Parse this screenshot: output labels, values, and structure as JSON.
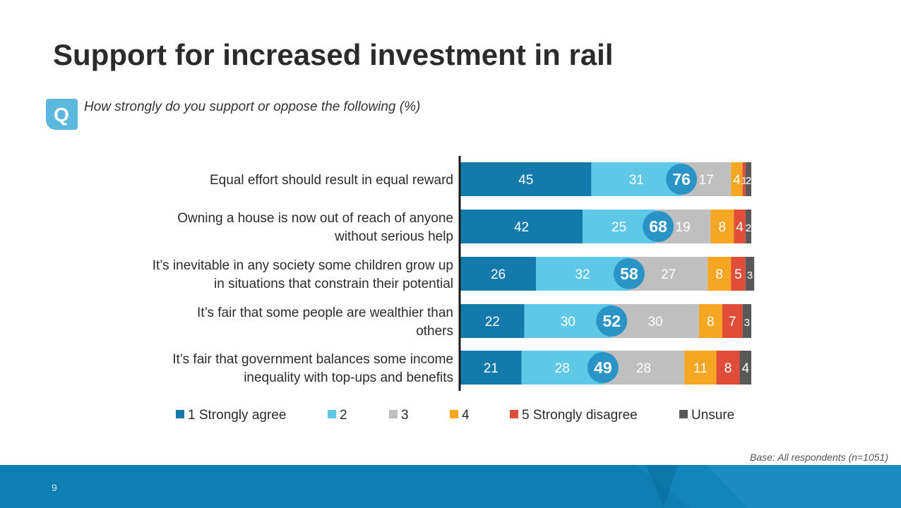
{
  "slide": {
    "title": "Support for increased investment in rail",
    "question": "How strongly do you support or oppose the following (%)",
    "base_note": "Base: All respondents (n=1051)",
    "page_number": "9",
    "question_icon_letter": "Q",
    "colors": {
      "title": "#2b2b2b",
      "footer": "#0e7eb3",
      "badge": "#5bb8de"
    }
  },
  "chart_data": {
    "type": "bar",
    "orientation": "horizontal",
    "stacked": true,
    "categories": [
      [
        "Equal effort should result in equal reward"
      ],
      [
        "Owning a house is now out of reach of anyone",
        "without serious help"
      ],
      [
        "It’s inevitable in any society some children grow up",
        "in situations that constrain their potential"
      ],
      [
        "It’s fair that some people are wealthier than",
        "others"
      ],
      [
        "It’s fair that government balances some income",
        "inequality with top-ups and benefits"
      ]
    ],
    "series": [
      {
        "name": "1 Strongly agree",
        "color": "#1479ab",
        "values": [
          45,
          42,
          26,
          22,
          21
        ]
      },
      {
        "name": "2",
        "color": "#5ec8e6",
        "values": [
          31,
          25,
          32,
          30,
          28
        ]
      },
      {
        "name": "3",
        "color": "#bfbfbf",
        "values": [
          17,
          19,
          27,
          30,
          28
        ]
      },
      {
        "name": "4",
        "color": "#f5a623",
        "values": [
          4,
          8,
          8,
          8,
          11
        ]
      },
      {
        "name": "5 Strongly disagree",
        "color": "#e04e39",
        "values": [
          1,
          4,
          5,
          7,
          8
        ]
      },
      {
        "name": "Unsure",
        "color": "#595959",
        "values": [
          2,
          2,
          3,
          3,
          4
        ]
      }
    ],
    "data_labels": [
      [
        "45",
        "31",
        "17",
        "4",
        "1",
        "2"
      ],
      [
        "42",
        "25",
        "19",
        "8",
        "4",
        "2"
      ],
      [
        "26",
        "32",
        "27",
        "8",
        "5",
        "3"
      ],
      [
        "22",
        "30",
        "30",
        "8",
        "7",
        "3"
      ],
      [
        "21",
        "28",
        "28",
        "11",
        "8",
        "4"
      ]
    ],
    "net_agree": {
      "values": [
        76,
        68,
        58,
        52,
        49
      ],
      "labels": [
        "76",
        "68",
        "58",
        "52",
        "49"
      ],
      "color": "#2b94c6"
    },
    "xlim": [
      0,
      100
    ],
    "grid": false,
    "legend_position": "bottom"
  }
}
